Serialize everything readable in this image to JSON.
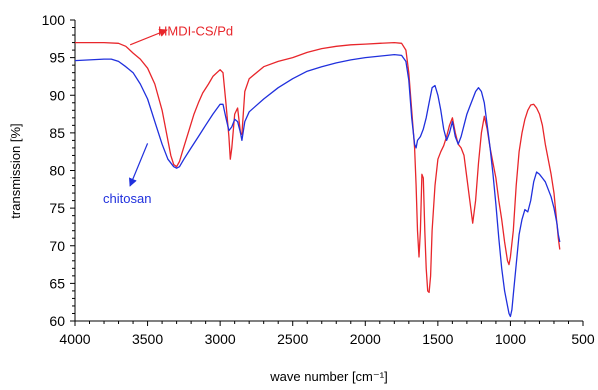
{
  "chart_data": {
    "type": "line",
    "xlabel": "wave number [cm⁻¹]",
    "ylabel": "transmission [%]",
    "xlim": [
      4000,
      500
    ],
    "ylim": [
      60,
      100
    ],
    "x_ticks": [
      4000,
      3500,
      3000,
      2500,
      2000,
      1500,
      1000,
      500
    ],
    "y_ticks": [
      60,
      65,
      70,
      75,
      80,
      85,
      90,
      95,
      100
    ],
    "x_tick_labels": [
      "4000",
      "3500",
      "3000",
      "2500",
      "2000",
      "1500",
      "1000",
      "500"
    ],
    "y_tick_labels": [
      "60",
      "65",
      "70",
      "75",
      "80",
      "85",
      "90",
      "95",
      "100"
    ],
    "grid": false,
    "annotations": [
      {
        "text": "HMDI-CS/Pd",
        "color": "#e8262b",
        "arrow_to": [
          3620,
          96.7
        ]
      },
      {
        "text": "chitosan",
        "color": "#2030dd",
        "arrow_to": [
          3500,
          83.6
        ]
      }
    ],
    "series": [
      {
        "name": "HMDI-CS/Pd",
        "color": "#e8262b",
        "points": [
          [
            4000,
            97.0
          ],
          [
            3900,
            97.0
          ],
          [
            3800,
            97.0
          ],
          [
            3700,
            96.9
          ],
          [
            3650,
            96.5
          ],
          [
            3600,
            95.6
          ],
          [
            3550,
            94.8
          ],
          [
            3500,
            93.6
          ],
          [
            3450,
            91.5
          ],
          [
            3400,
            88.0
          ],
          [
            3380,
            86.0
          ],
          [
            3360,
            84.0
          ],
          [
            3340,
            82.0
          ],
          [
            3320,
            80.8
          ],
          [
            3300,
            80.5
          ],
          [
            3280,
            81.2
          ],
          [
            3260,
            82.5
          ],
          [
            3220,
            85.0
          ],
          [
            3180,
            87.5
          ],
          [
            3150,
            89.0
          ],
          [
            3120,
            90.3
          ],
          [
            3080,
            91.5
          ],
          [
            3050,
            92.5
          ],
          [
            3000,
            93.4
          ],
          [
            2980,
            93.0
          ],
          [
            2960,
            89.0
          ],
          [
            2940,
            84.5
          ],
          [
            2930,
            81.5
          ],
          [
            2920,
            83.0
          ],
          [
            2900,
            87.5
          ],
          [
            2880,
            88.3
          ],
          [
            2860,
            85.0
          ],
          [
            2850,
            84.8
          ],
          [
            2830,
            90.5
          ],
          [
            2800,
            92.2
          ],
          [
            2700,
            93.8
          ],
          [
            2600,
            94.5
          ],
          [
            2500,
            95.0
          ],
          [
            2400,
            95.7
          ],
          [
            2300,
            96.2
          ],
          [
            2200,
            96.5
          ],
          [
            2100,
            96.7
          ],
          [
            2000,
            96.8
          ],
          [
            1900,
            96.9
          ],
          [
            1800,
            97.0
          ],
          [
            1750,
            96.9
          ],
          [
            1720,
            96.0
          ],
          [
            1700,
            93.0
          ],
          [
            1680,
            88.0
          ],
          [
            1660,
            83.0
          ],
          [
            1650,
            78.0
          ],
          [
            1640,
            72.0
          ],
          [
            1630,
            68.5
          ],
          [
            1620,
            72.0
          ],
          [
            1610,
            79.5
          ],
          [
            1600,
            79.0
          ],
          [
            1590,
            72.0
          ],
          [
            1580,
            67.0
          ],
          [
            1570,
            64.0
          ],
          [
            1560,
            63.8
          ],
          [
            1550,
            66.0
          ],
          [
            1540,
            72.0
          ],
          [
            1520,
            78.0
          ],
          [
            1500,
            81.5
          ],
          [
            1480,
            82.5
          ],
          [
            1460,
            83.3
          ],
          [
            1440,
            84.5
          ],
          [
            1420,
            86.0
          ],
          [
            1400,
            87.0
          ],
          [
            1380,
            85.0
          ],
          [
            1360,
            83.5
          ],
          [
            1340,
            83.0
          ],
          [
            1320,
            82.0
          ],
          [
            1300,
            79.0
          ],
          [
            1280,
            76.0
          ],
          [
            1260,
            73.0
          ],
          [
            1240,
            76.0
          ],
          [
            1220,
            81.0
          ],
          [
            1200,
            85.0
          ],
          [
            1180,
            87.2
          ],
          [
            1160,
            85.5
          ],
          [
            1140,
            83.0
          ],
          [
            1120,
            81.0
          ],
          [
            1100,
            79.0
          ],
          [
            1080,
            76.0
          ],
          [
            1060,
            73.5
          ],
          [
            1040,
            70.5
          ],
          [
            1020,
            68.0
          ],
          [
            1010,
            67.5
          ],
          [
            1000,
            68.5
          ],
          [
            980,
            72.0
          ],
          [
            960,
            78.0
          ],
          [
            940,
            82.5
          ],
          [
            920,
            85.0
          ],
          [
            900,
            86.8
          ],
          [
            880,
            88.0
          ],
          [
            860,
            88.7
          ],
          [
            840,
            88.8
          ],
          [
            820,
            88.3
          ],
          [
            800,
            87.5
          ],
          [
            780,
            86.0
          ],
          [
            760,
            83.5
          ],
          [
            740,
            81.5
          ],
          [
            720,
            79.5
          ],
          [
            700,
            77.0
          ],
          [
            690,
            75.0
          ],
          [
            680,
            73.0
          ],
          [
            670,
            71.0
          ],
          [
            660,
            69.5
          ]
        ]
      },
      {
        "name": "chitosan",
        "color": "#2030dd",
        "points": [
          [
            4000,
            94.6
          ],
          [
            3900,
            94.7
          ],
          [
            3800,
            94.8
          ],
          [
            3750,
            94.8
          ],
          [
            3700,
            94.5
          ],
          [
            3650,
            93.8
          ],
          [
            3600,
            93.0
          ],
          [
            3550,
            91.5
          ],
          [
            3500,
            89.5
          ],
          [
            3450,
            86.5
          ],
          [
            3400,
            83.5
          ],
          [
            3360,
            81.5
          ],
          [
            3320,
            80.5
          ],
          [
            3300,
            80.3
          ],
          [
            3280,
            80.5
          ],
          [
            3250,
            81.5
          ],
          [
            3200,
            83.0
          ],
          [
            3150,
            84.5
          ],
          [
            3100,
            86.0
          ],
          [
            3050,
            87.5
          ],
          [
            3000,
            88.8
          ],
          [
            2980,
            88.8
          ],
          [
            2960,
            87.0
          ],
          [
            2940,
            85.3
          ],
          [
            2920,
            85.8
          ],
          [
            2900,
            86.8
          ],
          [
            2880,
            86.5
          ],
          [
            2860,
            85.0
          ],
          [
            2850,
            84.0
          ],
          [
            2830,
            86.5
          ],
          [
            2800,
            87.8
          ],
          [
            2700,
            89.5
          ],
          [
            2600,
            91.0
          ],
          [
            2500,
            92.2
          ],
          [
            2400,
            93.2
          ],
          [
            2300,
            93.8
          ],
          [
            2200,
            94.3
          ],
          [
            2100,
            94.7
          ],
          [
            2000,
            95.0
          ],
          [
            1900,
            95.2
          ],
          [
            1800,
            95.4
          ],
          [
            1750,
            95.3
          ],
          [
            1720,
            94.5
          ],
          [
            1700,
            92.0
          ],
          [
            1680,
            87.0
          ],
          [
            1660,
            83.5
          ],
          [
            1650,
            83.0
          ],
          [
            1640,
            84.0
          ],
          [
            1620,
            84.5
          ],
          [
            1600,
            85.5
          ],
          [
            1580,
            87.0
          ],
          [
            1560,
            89.0
          ],
          [
            1540,
            91.0
          ],
          [
            1520,
            91.3
          ],
          [
            1500,
            90.0
          ],
          [
            1480,
            88.0
          ],
          [
            1460,
            85.5
          ],
          [
            1440,
            84.0
          ],
          [
            1420,
            85.0
          ],
          [
            1400,
            86.5
          ],
          [
            1380,
            84.5
          ],
          [
            1360,
            83.5
          ],
          [
            1340,
            84.5
          ],
          [
            1320,
            86.0
          ],
          [
            1300,
            87.5
          ],
          [
            1280,
            88.5
          ],
          [
            1260,
            89.5
          ],
          [
            1240,
            90.5
          ],
          [
            1220,
            91.0
          ],
          [
            1200,
            90.5
          ],
          [
            1180,
            89.0
          ],
          [
            1160,
            86.0
          ],
          [
            1140,
            83.0
          ],
          [
            1120,
            79.5
          ],
          [
            1100,
            75.5
          ],
          [
            1080,
            71.0
          ],
          [
            1060,
            67.0
          ],
          [
            1040,
            64.0
          ],
          [
            1020,
            62.0
          ],
          [
            1010,
            61.0
          ],
          [
            1000,
            60.6
          ],
          [
            990,
            61.5
          ],
          [
            980,
            63.5
          ],
          [
            960,
            67.5
          ],
          [
            940,
            71.5
          ],
          [
            920,
            73.5
          ],
          [
            900,
            74.8
          ],
          [
            880,
            74.5
          ],
          [
            860,
            76.0
          ],
          [
            840,
            78.5
          ],
          [
            820,
            79.8
          ],
          [
            800,
            79.5
          ],
          [
            780,
            79.0
          ],
          [
            760,
            78.5
          ],
          [
            740,
            77.5
          ],
          [
            720,
            76.5
          ],
          [
            700,
            75.0
          ],
          [
            680,
            73.0
          ],
          [
            670,
            71.5
          ],
          [
            660,
            70.5
          ]
        ]
      }
    ]
  }
}
